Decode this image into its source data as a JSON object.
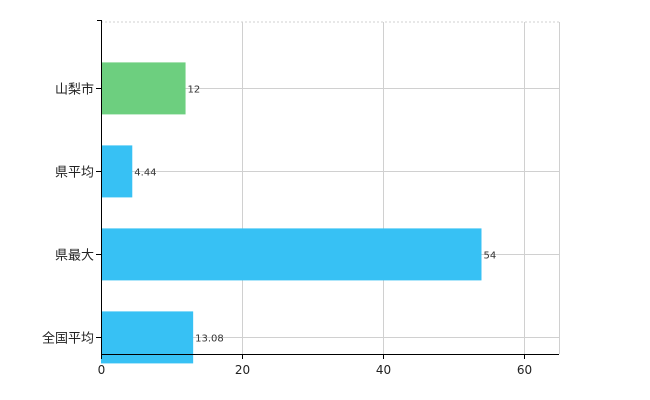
{
  "chart_data": {
    "type": "bar",
    "orientation": "horizontal",
    "categories": [
      "山梨市",
      "県平均",
      "県最大",
      "全国平均"
    ],
    "values": [
      12,
      4.44,
      54,
      13.08
    ],
    "value_labels": [
      "12",
      "4.44",
      "54",
      "13.08"
    ],
    "bar_colors": [
      "#6dcf7f",
      "#37c1f4",
      "#37c1f4",
      "#37c1f4"
    ],
    "xlim": [
      0,
      65
    ],
    "xticks": [
      0,
      20,
      40,
      60
    ],
    "grid": true,
    "title": "",
    "xlabel": "",
    "ylabel": ""
  },
  "colors": {
    "highlight": "#6dcf7f",
    "default": "#37c1f4",
    "grid": "#d0d0d0",
    "axis": "#000000"
  }
}
